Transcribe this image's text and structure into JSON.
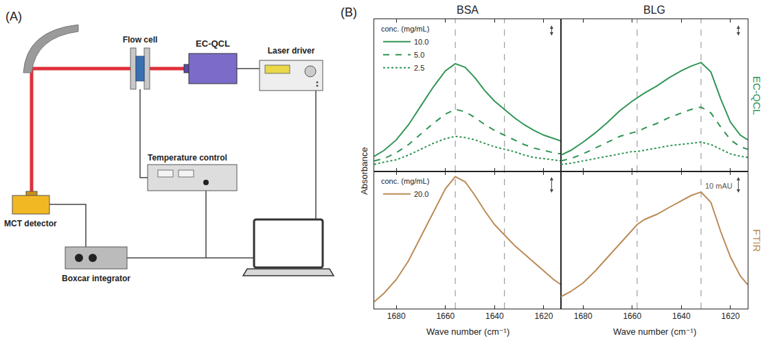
{
  "panel_labels": [
    "(A)",
    "(B)"
  ],
  "diagram": {
    "nodes": [
      "Flow cell",
      "EC-QCL",
      "Laser driver",
      "Temperature control",
      "MCT detector",
      "Boxcar integrator"
    ]
  },
  "columns": [
    "BSA",
    "BLG"
  ],
  "rows": [
    {
      "label": "EC-QCL",
      "color": "#2f9554"
    },
    {
      "label": "FTIR",
      "color": "#bb8a55"
    }
  ],
  "ylabel": "Absorbance",
  "chart_data": [
    {
      "type": "line",
      "x": [
        1689,
        1685,
        1680,
        1675,
        1670,
        1665,
        1660,
        1656,
        1652,
        1648,
        1644,
        1640,
        1636,
        1632,
        1628,
        1624,
        1620,
        1616,
        1613
      ],
      "xlim": [
        1689,
        1613
      ],
      "xticks": [
        1680,
        1660,
        1640,
        1620
      ],
      "ylim": [
        0,
        130
      ],
      "tick_labels": false,
      "grid": false,
      "legend": "upper left",
      "legend_title": "conc. (mg/mL)",
      "reference_lines": [
        1656,
        1636
      ],
      "scale_bar": 10,
      "series": [
        {
          "name": "10.0",
          "color": "#2f9554",
          "line_style": "solid",
          "values": [
            13,
            18,
            27,
            40,
            56,
            72,
            86,
            92,
            89,
            80,
            69,
            60,
            53,
            46,
            40,
            35,
            31,
            28,
            26
          ]
        },
        {
          "name": "5.0",
          "color": "#2f9554",
          "line_style": "dash",
          "values": [
            9,
            11,
            16,
            23,
            32,
            41,
            49,
            53,
            51,
            46,
            40,
            35,
            31,
            27,
            23,
            20,
            18,
            16,
            15
          ]
        },
        {
          "name": "2.5",
          "color": "#2f9554",
          "line_style": "dot",
          "values": [
            6,
            8,
            10,
            14,
            19,
            24,
            28,
            30,
            29,
            27,
            24,
            21,
            19,
            17,
            14,
            12,
            11,
            10,
            9
          ]
        }
      ]
    },
    {
      "type": "line",
      "x": [
        1689,
        1685,
        1680,
        1675,
        1670,
        1665,
        1660,
        1658,
        1655,
        1650,
        1645,
        1640,
        1636,
        1632,
        1628,
        1624,
        1620,
        1616,
        1613
      ],
      "xlim": [
        1689,
        1613
      ],
      "xticks": [
        1680,
        1660,
        1640,
        1620
      ],
      "ylim": [
        0,
        130
      ],
      "tick_labels": false,
      "grid": false,
      "reference_lines": [
        1658,
        1632
      ],
      "scale_bar": 10,
      "series": [
        {
          "color": "#2f9554",
          "line_style": "solid",
          "values": [
            14,
            18,
            25,
            33,
            42,
            52,
            60,
            63,
            67,
            73,
            80,
            86,
            90,
            93,
            85,
            62,
            42,
            31,
            27
          ]
        },
        {
          "color": "#2f9554",
          "line_style": "dash",
          "values": [
            9,
            11,
            15,
            20,
            25,
            30,
            33,
            34,
            37,
            41,
            46,
            50,
            53,
            55,
            50,
            38,
            27,
            21,
            19
          ]
        },
        {
          "color": "#2f9554",
          "line_style": "dot",
          "values": [
            6,
            7,
            9,
            11,
            13,
            15,
            17,
            17,
            18,
            20,
            22,
            23,
            24,
            25,
            23,
            19,
            15,
            13,
            12
          ]
        }
      ]
    },
    {
      "type": "line",
      "x": [
        1689,
        1685,
        1680,
        1675,
        1670,
        1665,
        1660,
        1656,
        1652,
        1648,
        1644,
        1640,
        1636,
        1632,
        1628,
        1624,
        1620,
        1616,
        1613
      ],
      "xlim": [
        1689,
        1613
      ],
      "xticks": [
        1680,
        1660,
        1640,
        1620
      ],
      "ylim": [
        0,
        80
      ],
      "xlabel": "Wave number (cm⁻¹)",
      "tick_labels": "x",
      "grid": false,
      "legend": "upper left",
      "legend_title": "conc. (mg/mL)",
      "reference_lines": [
        1656,
        1636
      ],
      "scale_bar": 10,
      "series": [
        {
          "name": "20.0",
          "color": "#bb8a55",
          "line_style": "solid",
          "values": [
            4,
            9,
            17,
            28,
            42,
            56,
            70,
            77,
            74,
            66,
            57,
            49,
            43,
            37,
            32,
            27,
            22,
            17,
            14
          ]
        }
      ]
    },
    {
      "type": "line",
      "x": [
        1689,
        1685,
        1680,
        1675,
        1670,
        1665,
        1660,
        1658,
        1655,
        1650,
        1645,
        1640,
        1636,
        1632,
        1628,
        1624,
        1620,
        1616,
        1613
      ],
      "xlim": [
        1689,
        1613
      ],
      "xticks": [
        1680,
        1660,
        1640,
        1620
      ],
      "ylim": [
        0,
        80
      ],
      "xlabel": "Wave number (cm⁻¹)",
      "tick_labels": "x",
      "grid": false,
      "reference_lines": [
        1658,
        1632
      ],
      "scale_bar": 10,
      "scale_bar_label": "10 mAU",
      "series": [
        {
          "color": "#bb8a55",
          "line_style": "solid",
          "values": [
            7,
            10,
            15,
            22,
            30,
            38,
            46,
            49,
            52,
            55,
            59,
            63,
            66,
            68,
            62,
            45,
            30,
            19,
            14
          ]
        }
      ]
    }
  ]
}
